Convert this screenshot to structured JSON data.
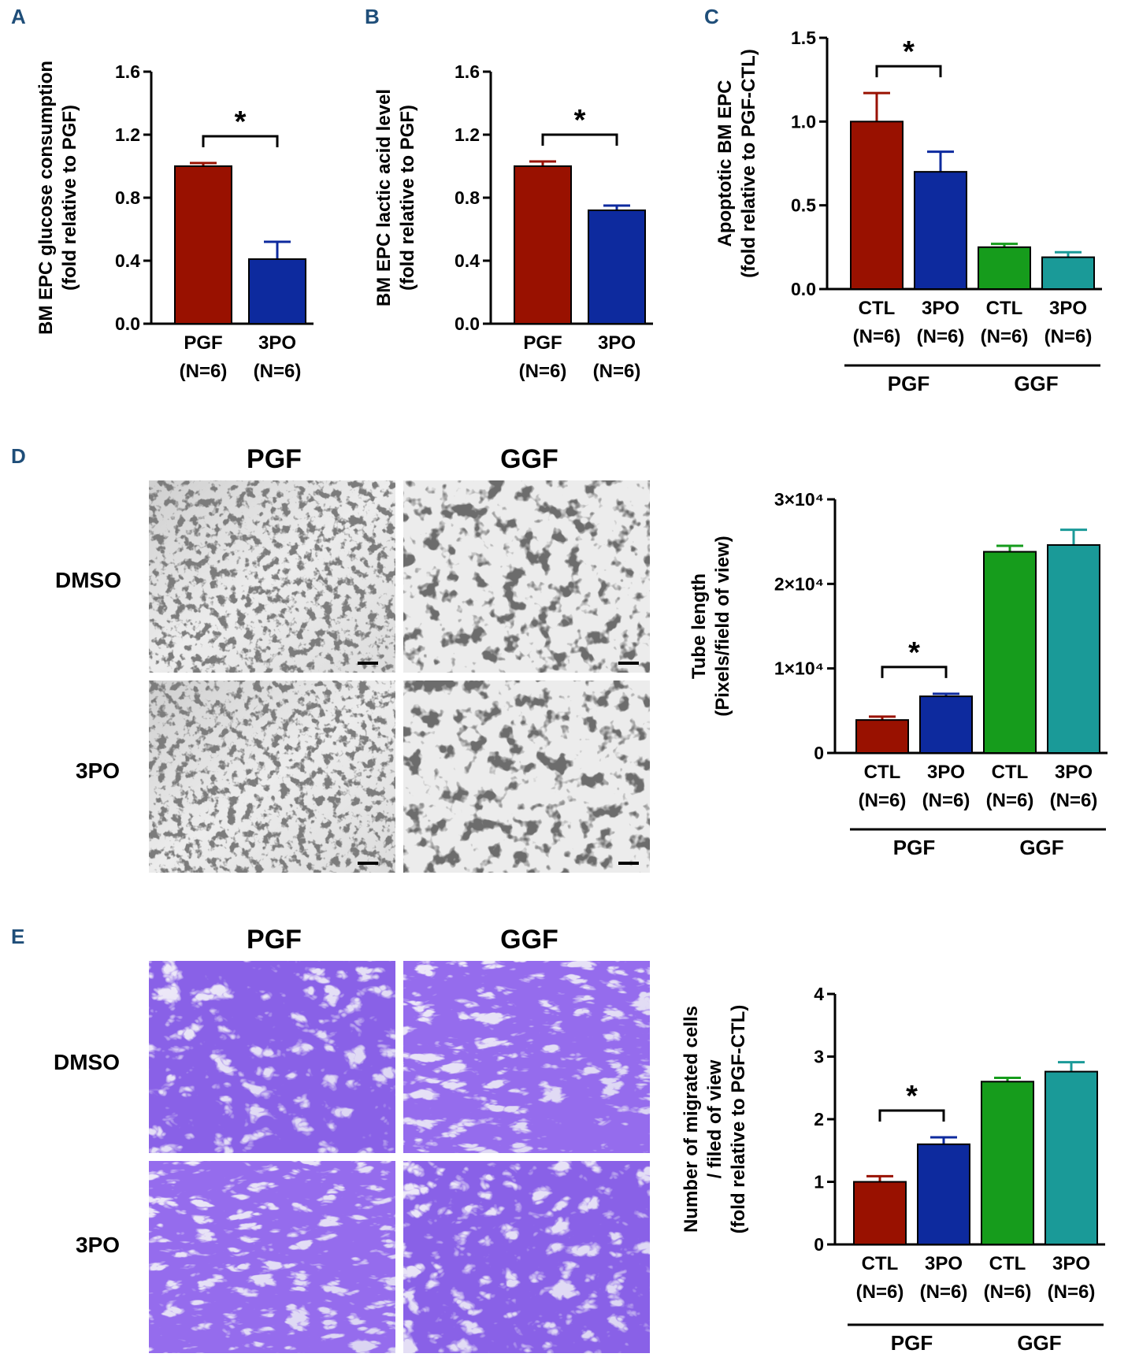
{
  "colors": {
    "pgf_red": "#991100",
    "threepo_blue": "#0d2a9e",
    "ggf_green": "#169c1c",
    "ggf_teal": "#1a9a98",
    "panel_letter": "#1f4e79",
    "crystal_violet": "#5a3fd6"
  },
  "panels": {
    "a": {
      "letter": "A"
    },
    "b": {
      "letter": "B"
    },
    "c": {
      "letter": "C"
    },
    "d": {
      "letter": "D",
      "col_headers": [
        "PGF",
        "GGF"
      ],
      "row_labels": [
        "DMSO",
        "3PO"
      ]
    },
    "e": {
      "letter": "E",
      "col_headers": [
        "PGF",
        "GGF"
      ],
      "row_labels": [
        "DMSO",
        "3PO"
      ]
    }
  },
  "chart_data": [
    {
      "id": "A",
      "type": "bar",
      "ylabel_lines": [
        "BM EPC glucose consumption",
        "(fold relative to PGF)"
      ],
      "yticks": [
        "0.0",
        "0.4",
        "0.8",
        "1.2",
        "1.6"
      ],
      "ylim": [
        0,
        1.6
      ],
      "categories": [
        [
          "PGF",
          "(N=6)"
        ],
        [
          "3PO",
          "(N=6)"
        ]
      ],
      "values": [
        1.0,
        0.41
      ],
      "errors": [
        0.02,
        0.11
      ],
      "colors": [
        "pgf_red",
        "threepo_blue"
      ],
      "significance": [
        {
          "pair": [
            0,
            1
          ],
          "label": "*"
        }
      ],
      "groups": []
    },
    {
      "id": "B",
      "type": "bar",
      "ylabel_lines": [
        "BM EPC lactic acid level",
        "(fold relative to PGF)"
      ],
      "yticks": [
        "0.0",
        "0.4",
        "0.8",
        "1.2",
        "1.6"
      ],
      "ylim": [
        0,
        1.6
      ],
      "categories": [
        [
          "PGF",
          "(N=6)"
        ],
        [
          "3PO",
          "(N=6)"
        ]
      ],
      "values": [
        1.0,
        0.72
      ],
      "errors": [
        0.03,
        0.03
      ],
      "colors": [
        "pgf_red",
        "threepo_blue"
      ],
      "significance": [
        {
          "pair": [
            0,
            1
          ],
          "label": "*"
        }
      ],
      "groups": []
    },
    {
      "id": "C",
      "type": "bar",
      "ylabel_lines": [
        "Apoptotic BM EPC",
        "(fold relative to PGF-CTL)"
      ],
      "yticks": [
        "0.0",
        "0.5",
        "1.0",
        "1.5"
      ],
      "ylim": [
        0,
        1.5
      ],
      "categories": [
        [
          "CTL",
          "(N=6)"
        ],
        [
          "3PO",
          "(N=6)"
        ],
        [
          "CTL",
          "(N=6)"
        ],
        [
          "3PO",
          "(N=6)"
        ]
      ],
      "values": [
        1.0,
        0.7,
        0.25,
        0.19
      ],
      "errors": [
        0.17,
        0.12,
        0.02,
        0.03
      ],
      "colors": [
        "pgf_red",
        "threepo_blue",
        "ggf_green",
        "ggf_teal"
      ],
      "significance": [
        {
          "pair": [
            0,
            1
          ],
          "label": "*"
        }
      ],
      "groups": [
        {
          "label": "PGF",
          "span": [
            0,
            1
          ]
        },
        {
          "label": "GGF",
          "span": [
            2,
            3
          ]
        }
      ]
    },
    {
      "id": "D",
      "type": "bar",
      "ylabel_lines": [
        "Tube length",
        "(Pixels/field of view)"
      ],
      "yticks": [
        "0",
        "1×10⁴",
        "2×10⁴",
        "3×10⁴"
      ],
      "ylim": [
        0,
        30000
      ],
      "categories": [
        [
          "CTL",
          "(N=6)"
        ],
        [
          "3PO",
          "(N=6)"
        ],
        [
          "CTL",
          "(N=6)"
        ],
        [
          "3PO",
          "(N=6)"
        ]
      ],
      "values": [
        3900,
        6700,
        23800,
        24600
      ],
      "errors": [
        400,
        300,
        700,
        1800
      ],
      "colors": [
        "pgf_red",
        "threepo_blue",
        "ggf_green",
        "ggf_teal"
      ],
      "significance": [
        {
          "pair": [
            0,
            1
          ],
          "label": "*"
        }
      ],
      "groups": [
        {
          "label": "PGF",
          "span": [
            0,
            1
          ]
        },
        {
          "label": "GGF",
          "span": [
            2,
            3
          ]
        }
      ]
    },
    {
      "id": "E",
      "type": "bar",
      "ylabel_lines": [
        "Number of migrated cells",
        "/ filed of view",
        "(fold relative to PGF-CTL)"
      ],
      "yticks": [
        "0",
        "1",
        "2",
        "3",
        "4"
      ],
      "ylim": [
        0,
        4
      ],
      "categories": [
        [
          "CTL",
          "(N=6)"
        ],
        [
          "3PO",
          "(N=6)"
        ],
        [
          "CTL",
          "(N=6)"
        ],
        [
          "3PO",
          "(N=6)"
        ]
      ],
      "values": [
        1.0,
        1.6,
        2.6,
        2.76
      ],
      "errors": [
        0.09,
        0.11,
        0.06,
        0.15
      ],
      "colors": [
        "pgf_red",
        "threepo_blue",
        "ggf_green",
        "ggf_teal"
      ],
      "significance": [
        {
          "pair": [
            0,
            1
          ],
          "label": "*"
        }
      ],
      "groups": [
        {
          "label": "PGF",
          "span": [
            0,
            1
          ]
        },
        {
          "label": "GGF",
          "span": [
            2,
            3
          ]
        }
      ]
    }
  ]
}
